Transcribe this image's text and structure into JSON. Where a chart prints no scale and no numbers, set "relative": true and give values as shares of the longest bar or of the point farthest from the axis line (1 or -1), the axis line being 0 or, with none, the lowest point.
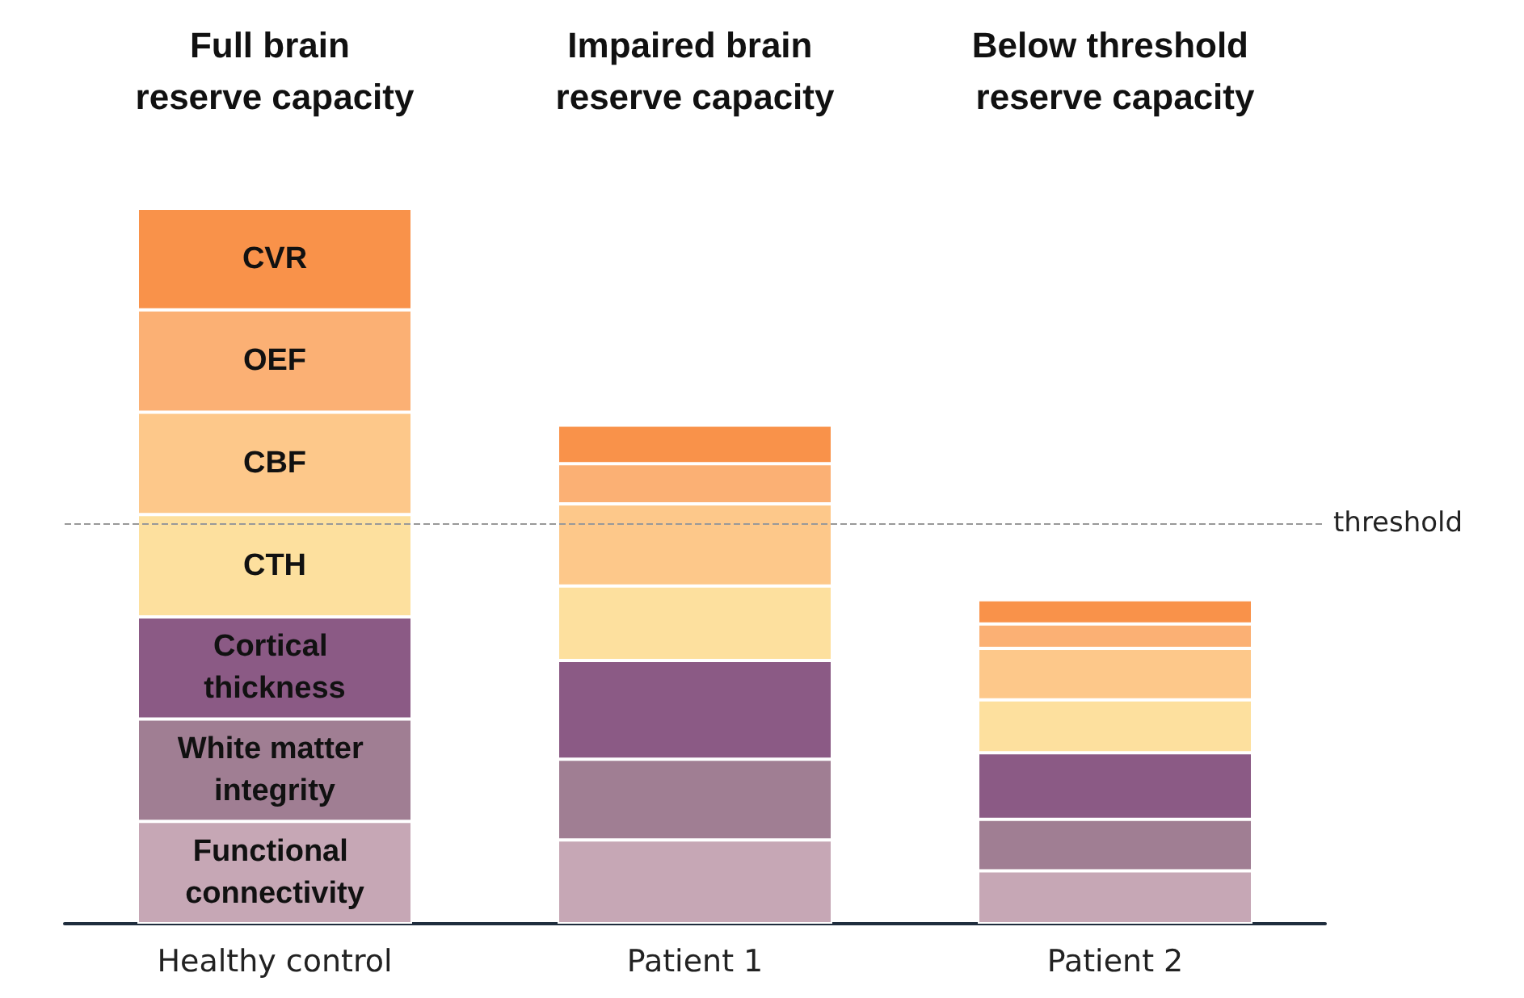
{
  "chart_data": {
    "type": "bar",
    "stacked": true,
    "relative": true,
    "legend": false,
    "grid": false,
    "data_labels": false,
    "categories": [
      "Healthy control",
      "Patient 1",
      "Patient 2"
    ],
    "series": [
      {
        "name": "Functional connectivity",
        "color": "#c6a7b5",
        "values": [
          0.143,
          0.117,
          0.074
        ]
      },
      {
        "name": "White matter integrity",
        "color": "#a07e93",
        "values": [
          0.143,
          0.113,
          0.072
        ]
      },
      {
        "name": "Cortical thickness",
        "color": "#8b5a85",
        "values": [
          0.143,
          0.138,
          0.093
        ]
      },
      {
        "name": "CTH",
        "color": "#fde09e",
        "values": [
          0.143,
          0.104,
          0.074
        ]
      },
      {
        "name": "CBF",
        "color": "#fdc88a",
        "values": [
          0.143,
          0.115,
          0.072
        ]
      },
      {
        "name": "OEF",
        "color": "#fbb074",
        "values": [
          0.143,
          0.056,
          0.034
        ]
      },
      {
        "name": "CVR",
        "color": "#f9924a",
        "values": [
          0.142,
          0.054,
          0.034
        ]
      }
    ],
    "ref_lines": [
      {
        "axis": "y",
        "value": 0.56,
        "label": "threshold",
        "color": "#999999",
        "line_style": "dashed"
      }
    ],
    "annotations": [
      "Full brain reserve capacity",
      "Impaired brain reserve capacity",
      "Below threshold reserve capacity"
    ]
  }
}
